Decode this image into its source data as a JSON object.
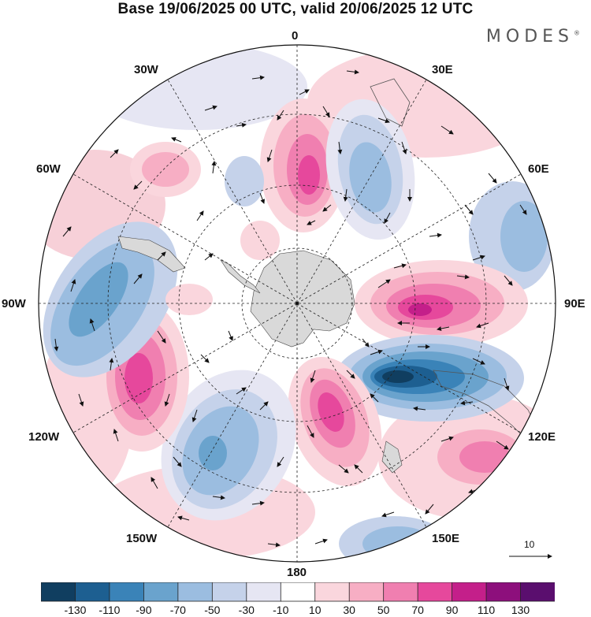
{
  "title": "Base 19/06/2025 00 UTC, valid 20/06/2025 12 UTC",
  "brand": "MODES",
  "brand_mark": "®",
  "longitude_labels": {
    "n0": "0",
    "n30e": "30E",
    "n60e": "60E",
    "n90e": "90E",
    "n120e": "120E",
    "n150e": "150E",
    "n180": "180",
    "n150w": "150W",
    "n120w": "120W",
    "n90w": "90W",
    "n60w": "60W",
    "n30w": "30W"
  },
  "reference_vector": {
    "label": "10"
  },
  "colorbar": {
    "labels": [
      "-130",
      "-110",
      "-90",
      "-70",
      "-50",
      "-30",
      "-10",
      "10",
      "30",
      "50",
      "70",
      "90",
      "110",
      "130"
    ],
    "colors": [
      "#103e60",
      "#1d5f91",
      "#3a83b8",
      "#6aa3cd",
      "#9bbde0",
      "#c5d2ea",
      "#e6e6f3",
      "#ffffff",
      "#fad6dd",
      "#f7aec4",
      "#f07fb0",
      "#e6489c",
      "#c41f8a",
      "#8d0f7c",
      "#5a0e6e"
    ]
  },
  "colors": {
    "land": "#d9d9d9",
    "grid": "#222222"
  }
}
